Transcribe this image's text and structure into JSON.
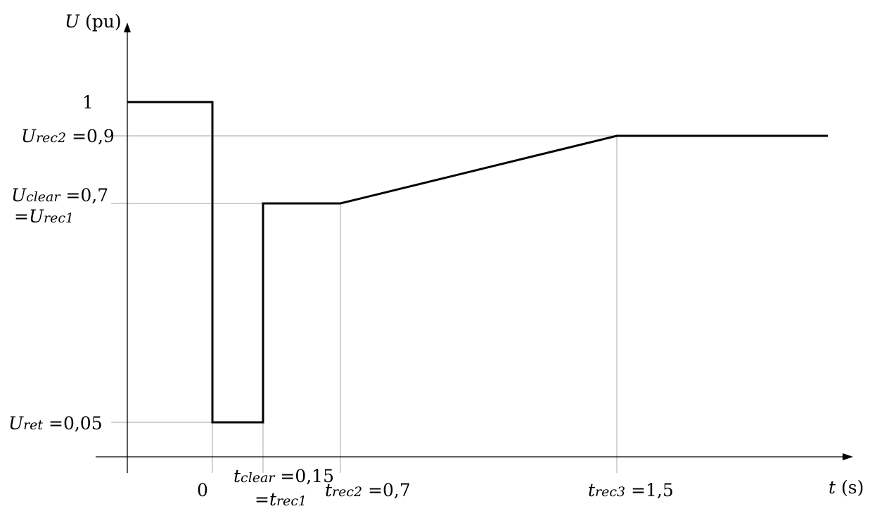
{
  "chart_data": {
    "type": "line",
    "axes": {
      "y": {
        "symbol": "U",
        "unit": "(pu)"
      },
      "x": {
        "symbol": "t",
        "unit": "(s)"
      }
    },
    "series": [
      {
        "points": [
          {
            "t": -0.15,
            "u": 1
          },
          {
            "t": 0,
            "u": 1
          },
          {
            "t": 0,
            "u": 0.05
          },
          {
            "t": 0.15,
            "u": 0.05
          },
          {
            "t": 0.15,
            "u": 0.7
          },
          {
            "t": 0.7,
            "u": 0.7
          },
          {
            "t": 1.5,
            "u": 0.9
          },
          {
            "t": 2.1,
            "u": 0.9
          }
        ]
      }
    ],
    "y_ticks": [
      {
        "value": 1,
        "text": "1"
      },
      {
        "value": 0.9,
        "var": "U",
        "sub": "rec2",
        "text": "=0,9"
      },
      {
        "value": 0.7,
        "var": "U",
        "sub": "clear",
        "text": "=0,7",
        "line2_prefix": "=",
        "line2_var": "U",
        "line2_sub": "rec1"
      },
      {
        "value": 0.05,
        "var": "U",
        "sub": "ret",
        "text": "=0,05"
      }
    ],
    "x_ticks": [
      {
        "value": 0,
        "text": "0"
      },
      {
        "value": 0.15,
        "var": "t",
        "sub": "clear",
        "text": "=0,15",
        "line2_prefix": "=",
        "line2_var": "t",
        "line2_sub": "rec1"
      },
      {
        "value": 0.7,
        "var": "t",
        "sub": "rec2",
        "text": "=0,7"
      },
      {
        "value": 1.5,
        "var": "t",
        "sub": "rec3",
        "text": "=1,5"
      }
    ],
    "grid": "reference lines at key points"
  }
}
